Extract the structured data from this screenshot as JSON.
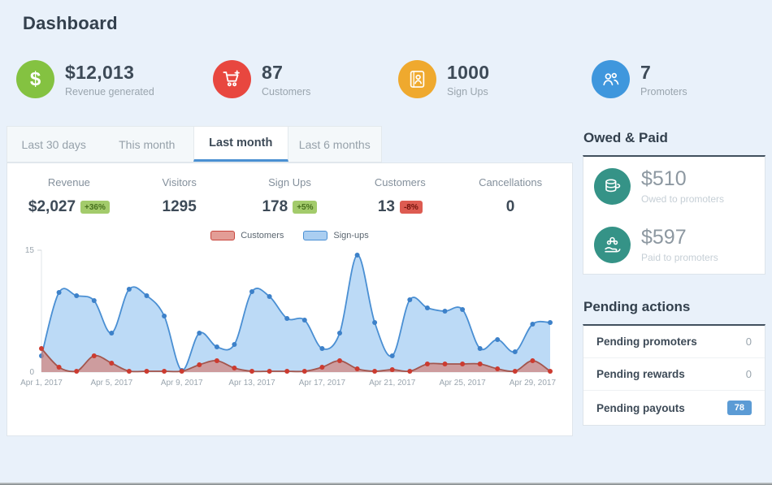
{
  "page_title": "Dashboard",
  "colors": {
    "accent_blue": "#4a90d2",
    "teal": "#359387",
    "background": "#e9f1fa"
  },
  "stats": [
    {
      "icon": "dollar-icon",
      "value": "$12,013",
      "label": "Revenue generated",
      "color": "#84c241"
    },
    {
      "icon": "shopping-cart-icon",
      "value": "87",
      "label": "Customers",
      "color": "#e8473f"
    },
    {
      "icon": "contact-card-icon",
      "value": "1000",
      "label": "Sign Ups",
      "color": "#efa92e"
    },
    {
      "icon": "people-icon",
      "value": "7",
      "label": "Promoters",
      "color": "#3f97dd"
    }
  ],
  "tabs": [
    {
      "label": "Last 30 days",
      "active": false
    },
    {
      "label": "This month",
      "active": false
    },
    {
      "label": "Last month",
      "active": true
    },
    {
      "label": "Last 6 months",
      "active": false
    }
  ],
  "panel_stats": [
    {
      "label": "Revenue",
      "value": "$2,027",
      "change": "+36%",
      "direction": "up"
    },
    {
      "label": "Visitors",
      "value": "1295",
      "change": null,
      "direction": null
    },
    {
      "label": "Sign Ups",
      "value": "178",
      "change": "+5%",
      "direction": "up"
    },
    {
      "label": "Customers",
      "value": "13",
      "change": "-8%",
      "direction": "down"
    },
    {
      "label": "Cancellations",
      "value": "0",
      "change": null,
      "direction": null
    }
  ],
  "chart_data": {
    "type": "area",
    "title": "",
    "xlabel": "",
    "ylabel": "",
    "n_points": 30,
    "ylim": [
      0,
      15
    ],
    "y_tick_labels": [
      "0",
      "15"
    ],
    "grid": false,
    "legend_position": "top",
    "x_tick_indices": [
      0,
      4,
      8,
      12,
      16,
      20,
      24,
      28
    ],
    "x_tick_labels": [
      "Apr 1, 2017",
      "Apr 5, 2017",
      "Apr 9, 2017",
      "Apr 13, 2017",
      "Apr 17, 2017",
      "Apr 21, 2017",
      "Apr 25, 2017",
      "Apr 29, 2017"
    ],
    "series": [
      {
        "name": "Customers",
        "color": "#a3564e",
        "dot_color": "#cc3b30",
        "fill": "#d4837c",
        "fill_opacity": 0.72,
        "values": [
          2.9,
          0.6,
          0.1,
          2.0,
          1.1,
          0.1,
          0.1,
          0.1,
          0.1,
          0.9,
          1.4,
          0.5,
          0.1,
          0.1,
          0.1,
          0.1,
          0.6,
          1.4,
          0.4,
          0.1,
          0.3,
          0.1,
          1.0,
          1.0,
          1.0,
          1.0,
          0.4,
          0.1,
          1.4,
          0.1
        ]
      },
      {
        "name": "Sign-ups",
        "color": "#4a8fd3",
        "dot_color": "#3d81c9",
        "fill": "#b8d8f5",
        "fill_opacity": 0.95,
        "values": [
          2.0,
          9.8,
          9.4,
          8.8,
          4.8,
          10.2,
          9.4,
          6.9,
          0.2,
          4.8,
          3.1,
          3.4,
          9.9,
          9.3,
          6.6,
          6.4,
          2.9,
          4.8,
          14.4,
          6.1,
          2.0,
          8.9,
          7.9,
          7.5,
          7.7,
          2.9,
          4.0,
          2.5,
          5.9,
          6.1
        ]
      }
    ]
  },
  "sidebar": {
    "owed_paid": {
      "title": "Owed & Paid",
      "accent": "#359387",
      "items": [
        {
          "icon": "coins-icon",
          "value": "$510",
          "label": "Owed to promoters"
        },
        {
          "icon": "hand-coins-icon",
          "value": "$597",
          "label": "Paid to promoters"
        }
      ]
    },
    "pending": {
      "title": "Pending actions",
      "badge_color": "#5b9bd5",
      "rows": [
        {
          "label": "Pending promoters",
          "value": "0",
          "badge": false
        },
        {
          "label": "Pending rewards",
          "value": "0",
          "badge": false
        },
        {
          "label": "Pending payouts",
          "value": "78",
          "badge": true
        }
      ]
    }
  }
}
